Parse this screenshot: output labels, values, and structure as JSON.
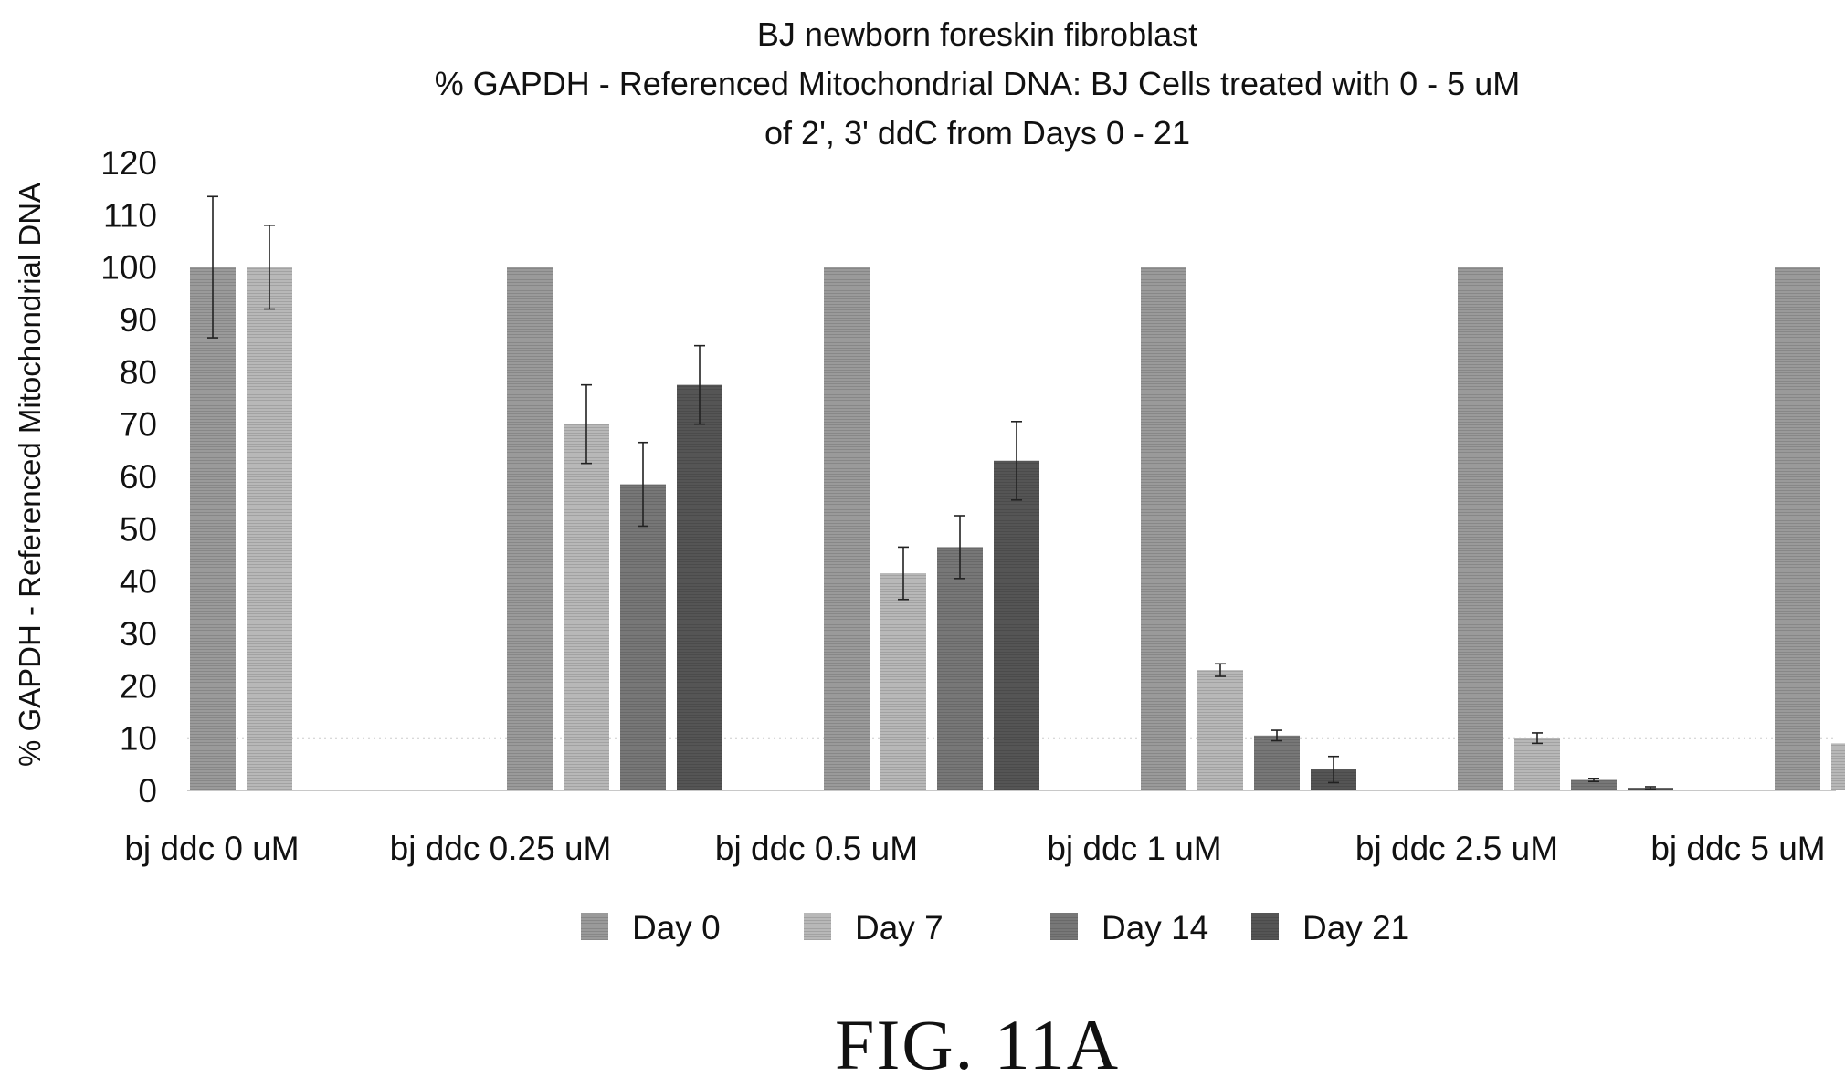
{
  "chart_data": {
    "type": "bar",
    "title": [
      "BJ newborn foreskin fibroblast",
      "% GAPDH - Referenced Mitochondrial DNA: BJ Cells treated with 0 - 5 uM",
      "of 2', 3' ddC from Days 0 - 21"
    ],
    "ylabel": "% GAPDH - Referenced Mitochondrial DNA",
    "xlabel": "",
    "ylim": [
      0,
      120
    ],
    "ytick_step": 10,
    "reference_line": 10,
    "legend_position": "bottom",
    "categories": [
      "bj ddc 0 uM",
      "bj ddc 0.25 uM",
      "bj ddc 0.5 uM",
      "bj ddc 1 uM",
      "bj ddc 2.5 uM",
      "bj ddc 5 uM"
    ],
    "series": [
      {
        "name": "Day 0",
        "color": "#9a9a9a",
        "values": [
          100,
          100,
          100,
          100,
          100,
          100
        ],
        "errors": [
          13.5,
          0,
          0,
          0,
          0,
          0
        ]
      },
      {
        "name": "Day 7",
        "color": "#b8b8b8",
        "values": [
          100,
          70,
          41.5,
          23,
          10,
          9
        ],
        "errors": [
          8,
          7.5,
          5,
          1.2,
          1,
          0.7
        ]
      },
      {
        "name": "Day 14",
        "color": "#777777",
        "values": [
          null,
          58.5,
          46.5,
          10.5,
          2,
          null
        ],
        "errors": [
          0,
          8,
          6,
          1,
          0.3,
          0
        ]
      },
      {
        "name": "Day 21",
        "color": "#555555",
        "values": [
          null,
          77.5,
          63,
          4,
          0.5,
          null
        ],
        "errors": [
          0,
          7.5,
          7.5,
          2.5,
          0.2,
          0
        ]
      }
    ]
  },
  "caption": "FIG. 11A"
}
